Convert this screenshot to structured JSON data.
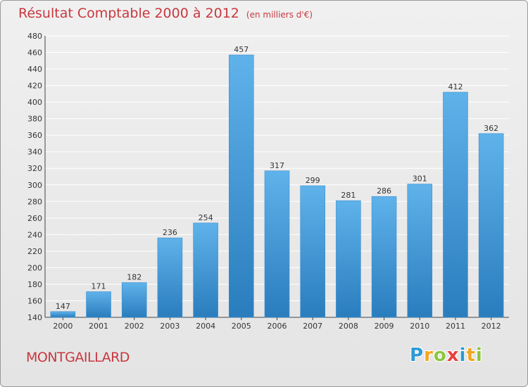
{
  "title": {
    "main": "Résultat Comptable 2000 à 2012",
    "sub": "(en milliers d'€)"
  },
  "commune": "MONTGAILLARD",
  "logo": {
    "letters": [
      "P",
      "r",
      "o",
      "x",
      "i",
      "t",
      "i"
    ],
    "colors": [
      "#2c9ad6",
      "#f4a51c",
      "#8cc63f",
      "#e8413c",
      "#2c9ad6",
      "#f4a51c",
      "#8cc63f"
    ]
  },
  "colors": {
    "title": "#c8383f",
    "bar_top": "#5fb2ea",
    "bar_bottom": "#2a7dbd",
    "grid": "#ffffff"
  },
  "chart_data": {
    "type": "bar",
    "categories": [
      "2000",
      "2001",
      "2002",
      "2003",
      "2004",
      "2005",
      "2006",
      "2007",
      "2008",
      "2009",
      "2010",
      "2011",
      "2012"
    ],
    "values": [
      147,
      171,
      182,
      236,
      254,
      457,
      317,
      299,
      281,
      286,
      301,
      412,
      362
    ],
    "ylim": [
      140,
      480
    ],
    "yticks": [
      140,
      160,
      180,
      200,
      220,
      240,
      260,
      280,
      300,
      320,
      340,
      360,
      380,
      400,
      420,
      440,
      460,
      480
    ],
    "grid": true,
    "data_labels": true
  }
}
